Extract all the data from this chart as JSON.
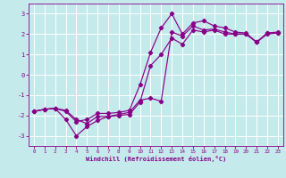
{
  "title": "",
  "xlabel": "Windchill (Refroidissement éolien,°C)",
  "ylabel": "",
  "bg_color": "#c5eaec",
  "line_color": "#880088",
  "grid_color": "#ffffff",
  "xlim": [
    -0.5,
    23.5
  ],
  "ylim": [
    -3.5,
    3.5
  ],
  "yticks": [
    -3,
    -2,
    -1,
    0,
    1,
    2,
    3
  ],
  "xticks": [
    0,
    1,
    2,
    3,
    4,
    5,
    6,
    7,
    8,
    9,
    10,
    11,
    12,
    13,
    14,
    15,
    16,
    17,
    18,
    19,
    20,
    21,
    22,
    23
  ],
  "line1_x": [
    0,
    1,
    2,
    3,
    4,
    5,
    6,
    7,
    8,
    9,
    10,
    11,
    12,
    13,
    14,
    15,
    16,
    17,
    18,
    19,
    20,
    21,
    22,
    23
  ],
  "line1_y": [
    -1.8,
    -1.7,
    -1.65,
    -1.8,
    -2.3,
    -2.2,
    -1.9,
    -1.9,
    -1.85,
    -1.75,
    -0.5,
    1.1,
    2.3,
    3.0,
    2.0,
    2.55,
    2.65,
    2.4,
    2.3,
    2.1,
    2.05,
    1.6,
    2.05,
    2.1
  ],
  "line2_x": [
    0,
    1,
    2,
    3,
    4,
    5,
    6,
    7,
    8,
    9,
    10,
    11,
    12,
    13,
    14,
    15,
    16,
    17,
    18,
    19,
    20,
    21,
    22,
    23
  ],
  "line2_y": [
    -1.8,
    -1.7,
    -1.65,
    -2.2,
    -3.0,
    -2.55,
    -2.25,
    -2.05,
    -1.95,
    -1.85,
    -1.25,
    -1.15,
    -1.3,
    2.1,
    1.9,
    2.4,
    2.2,
    2.25,
    2.1,
    2.0,
    2.0,
    1.6,
    2.05,
    2.05
  ],
  "line3_x": [
    0,
    1,
    2,
    3,
    4,
    5,
    6,
    7,
    8,
    9,
    10,
    11,
    12,
    13,
    14,
    15,
    16,
    17,
    18,
    19,
    20,
    21,
    22,
    23
  ],
  "line3_y": [
    -1.8,
    -1.7,
    -1.65,
    -1.75,
    -2.2,
    -2.4,
    -2.05,
    -2.05,
    -2.0,
    -1.95,
    -1.35,
    0.45,
    1.0,
    1.8,
    1.5,
    2.2,
    2.1,
    2.2,
    2.0,
    2.0,
    2.0,
    1.6,
    2.0,
    2.05
  ]
}
